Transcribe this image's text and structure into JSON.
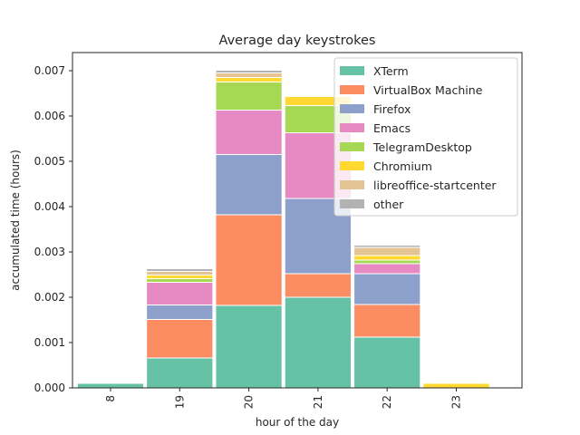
{
  "chart_data": {
    "type": "bar",
    "stacked": true,
    "title": "Average day keystrokes",
    "xlabel": "hour of the day",
    "ylabel": "accumulated time (hours)",
    "categories": [
      "8",
      "19",
      "20",
      "21",
      "22",
      "23"
    ],
    "ylim": [
      0,
      0.0074
    ],
    "yticks": [
      "0.000",
      "0.001",
      "0.002",
      "0.003",
      "0.004",
      "0.005",
      "0.006",
      "0.007"
    ],
    "grid": false,
    "legend_position": "top-right",
    "series": [
      {
        "name": "XTerm",
        "color": "#66c2a5",
        "values": [
          0.0001,
          0.00066,
          0.00182,
          0.002,
          0.00112,
          0
        ]
      },
      {
        "name": "VirtualBox Machine",
        "color": "#fc8d62",
        "values": [
          0,
          0.00085,
          0.002,
          0.00052,
          0.00072,
          0
        ]
      },
      {
        "name": "Firefox",
        "color": "#8da0cb",
        "values": [
          0,
          0.00032,
          0.00133,
          0.00166,
          0.00068,
          0
        ]
      },
      {
        "name": "Emacs",
        "color": "#e78ac3",
        "values": [
          0,
          0.0005,
          0.00098,
          0.00145,
          0.00022,
          0
        ]
      },
      {
        "name": "TelegramDesktop",
        "color": "#a6d854",
        "values": [
          0,
          8e-05,
          0.00062,
          0.0006,
          8e-05,
          0
        ]
      },
      {
        "name": "Chromium",
        "color": "#ffd92f",
        "values": [
          0,
          8e-05,
          0.0001,
          0.0002,
          0.0001,
          0.0001
        ]
      },
      {
        "name": "libreoffice-startcenter",
        "color": "#e5c494",
        "values": [
          0,
          8e-05,
          0.0001,
          0,
          0.00018,
          0
        ]
      },
      {
        "name": "other",
        "color": "#b3b3b3",
        "values": [
          0,
          6e-05,
          6e-05,
          0,
          5e-05,
          0
        ]
      }
    ]
  }
}
